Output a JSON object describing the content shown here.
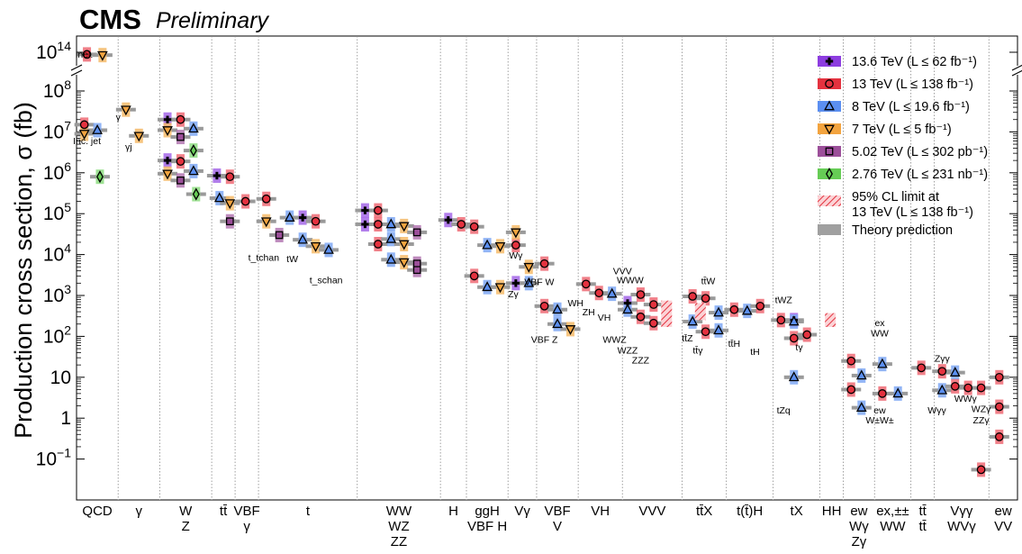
{
  "header": {
    "brand": "CMS",
    "status": "Preliminary"
  },
  "chart_data": {
    "type": "scatter",
    "scale": "log",
    "ylabel": "Production cross section, σ (fb)",
    "y_ticks": [
      {
        "v": 0.1,
        "base": "10",
        "exp": "−1"
      },
      {
        "v": 1,
        "text": "1"
      },
      {
        "v": 10,
        "text": "10"
      },
      {
        "v": 100,
        "base": "10",
        "exp": "2"
      },
      {
        "v": 1000,
        "base": "10",
        "exp": "3"
      },
      {
        "v": 10000,
        "base": "10",
        "exp": "4"
      },
      {
        "v": 100000,
        "base": "10",
        "exp": "5"
      },
      {
        "v": 1000000,
        "base": "10",
        "exp": "6"
      },
      {
        "v": 10000000,
        "base": "10",
        "exp": "7"
      },
      {
        "v": 100000000,
        "base": "10",
        "exp": "8"
      },
      {
        "v": 100000000000000,
        "base": "10",
        "exp": "14"
      }
    ],
    "ylim": [
      0.01,
      100000000000000
    ],
    "axis_break": "between 10^8 and 10^14",
    "grid": "dotted vertical separators between process groups",
    "groups": [
      {
        "lines": [
          "QCD"
        ],
        "x": [
          0,
          1.6
        ]
      },
      {
        "lines": [
          "γ"
        ],
        "x": [
          1.6,
          3.2
        ]
      },
      {
        "lines": [
          "W",
          "Z"
        ],
        "x": [
          3.2,
          5.2
        ]
      },
      {
        "lines": [
          "tt̄"
        ],
        "x": [
          5.2,
          6.1
        ]
      },
      {
        "lines": [
          "VBF",
          "γ"
        ],
        "x": [
          6.1,
          7.0
        ]
      },
      {
        "lines": [
          "t"
        ],
        "x": [
          7.0,
          10.8
        ]
      },
      {
        "lines": [
          "WW",
          "WZ",
          "ZZ"
        ],
        "x": [
          10.8,
          14.0
        ]
      },
      {
        "lines": [
          "H"
        ],
        "x": [
          14.0,
          15.0
        ]
      },
      {
        "lines": [
          "ggH",
          "VBF H"
        ],
        "x": [
          15.0,
          16.6
        ]
      },
      {
        "lines": [
          "Vγ"
        ],
        "x": [
          16.6,
          17.7
        ]
      },
      {
        "lines": [
          "VBF",
          "V"
        ],
        "x": [
          17.7,
          19.3
        ]
      },
      {
        "lines": [
          "VH"
        ],
        "x": [
          19.3,
          21.0
        ]
      },
      {
        "lines": [
          "VVV"
        ],
        "x": [
          21.0,
          23.3
        ]
      },
      {
        "lines": [
          "tt̄X"
        ],
        "x": [
          23.3,
          25.0
        ]
      },
      {
        "lines": [
          "t(t̄)H"
        ],
        "x": [
          25.0,
          26.8
        ]
      },
      {
        "lines": [
          "tX"
        ],
        "x": [
          26.8,
          28.6
        ]
      },
      {
        "lines": [
          "HH"
        ],
        "x": [
          28.6,
          29.5
        ]
      },
      {
        "lines": [
          "ew",
          "Wγ",
          "Zγ"
        ],
        "x": [
          29.5,
          30.7
        ]
      },
      {
        "lines": [
          "ex,±±",
          "WW"
        ],
        "x": [
          30.7,
          32.1
        ]
      },
      {
        "lines": [
          "tt̄",
          "tt̄"
        ],
        "x": [
          32.1,
          33.0
        ]
      },
      {
        "lines": [
          "Vγγ",
          "WVγ"
        ],
        "x": [
          33.0,
          35.1
        ]
      },
      {
        "lines": [
          "ew",
          "VV"
        ],
        "x": [
          35.1,
          36.2
        ]
      }
    ],
    "xlim": [
      0,
      36.2
    ],
    "legend_position": "top-right",
    "legend": [
      {
        "label": "13.6 TeV (L ≤ 62 fb⁻¹)",
        "marker": "cross",
        "color": "#8d3de0"
      },
      {
        "label": "13 TeV (L ≤ 138 fb⁻¹)",
        "marker": "circle",
        "color": "#e4323f"
      },
      {
        "label": "8 TeV (L ≤ 19.6 fb⁻¹)",
        "marker": "triangle",
        "color": "#5b8ff1"
      },
      {
        "label": "7 TeV (L ≤ 5 fb⁻¹)",
        "marker": "tridown",
        "color": "#f3a43f"
      },
      {
        "label": "5.02 TeV (L ≤ 302 pb⁻¹)",
        "marker": "square",
        "color": "#9c4f9a"
      },
      {
        "label": "2.76 TeV (L ≤ 231 nb⁻¹)",
        "marker": "diamond",
        "color": "#66cc55"
      },
      {
        "label": "95% CL limit at",
        "label2": "13 TeV (L ≤ 138 fb⁻¹)",
        "marker": "hatch",
        "color": "#e4323f"
      },
      {
        "label": "Theory prediction",
        "marker": "theory",
        "color": "#a0a0a0"
      }
    ],
    "points": [
      {
        "x": 0.4,
        "y": 50000000000000.0,
        "m": "circle",
        "c": "#e4323f"
      },
      {
        "x": 1.0,
        "y": 40000000000000.0,
        "m": "tridown",
        "c": "#f3a43f"
      },
      {
        "x": 0.3,
        "y": 15000000.0,
        "m": "circle",
        "c": "#e4323f"
      },
      {
        "x": 0.3,
        "y": 9000000.0,
        "m": "tridown",
        "c": "#f3a43f"
      },
      {
        "x": 0.8,
        "y": 11000000.0,
        "m": "triangle",
        "c": "#5b8ff1"
      },
      {
        "x": 0.9,
        "y": 800000.0,
        "m": "diamond",
        "c": "#66cc55"
      },
      {
        "x": 1.9,
        "y": 35000000.0,
        "m": "tridown",
        "c": "#f3a43f"
      },
      {
        "x": 2.4,
        "y": 8000000.0,
        "m": "tridown",
        "c": "#f3a43f"
      },
      {
        "x": 3.5,
        "y": 20000000.0,
        "m": "cross",
        "c": "#8d3de0"
      },
      {
        "x": 4.0,
        "y": 20000000.0,
        "m": "circle",
        "c": "#e4323f"
      },
      {
        "x": 3.5,
        "y": 11000000.0,
        "m": "tridown",
        "c": "#f3a43f"
      },
      {
        "x": 4.0,
        "y": 7500000.0,
        "m": "square",
        "c": "#9c4f9a"
      },
      {
        "x": 4.5,
        "y": 12000000.0,
        "m": "triangle",
        "c": "#5b8ff1"
      },
      {
        "x": 4.5,
        "y": 3500000.0,
        "m": "diamond",
        "c": "#66cc55"
      },
      {
        "x": 3.5,
        "y": 2000000.0,
        "m": "cross",
        "c": "#8d3de0"
      },
      {
        "x": 4.0,
        "y": 1900000.0,
        "m": "circle",
        "c": "#e4323f"
      },
      {
        "x": 4.5,
        "y": 1100000.0,
        "m": "triangle",
        "c": "#5b8ff1"
      },
      {
        "x": 3.5,
        "y": 950000.0,
        "m": "tridown",
        "c": "#f3a43f"
      },
      {
        "x": 4.0,
        "y": 650000.0,
        "m": "square",
        "c": "#9c4f9a"
      },
      {
        "x": 4.6,
        "y": 300000.0,
        "m": "diamond",
        "c": "#66cc55"
      },
      {
        "x": 5.4,
        "y": 850000.0,
        "m": "cross",
        "c": "#8d3de0"
      },
      {
        "x": 5.9,
        "y": 800000.0,
        "m": "circle",
        "c": "#e4323f"
      },
      {
        "x": 5.5,
        "y": 240000.0,
        "m": "triangle",
        "c": "#5b8ff1"
      },
      {
        "x": 5.9,
        "y": 180000.0,
        "m": "tridown",
        "c": "#f3a43f"
      },
      {
        "x": 5.9,
        "y": 65000.0,
        "m": "square",
        "c": "#9c4f9a"
      },
      {
        "x": 6.5,
        "y": 200000.0,
        "m": "circle",
        "c": "#e4323f"
      },
      {
        "x": 7.3,
        "y": 230000.0,
        "m": "circle",
        "c": "#e4323f"
      },
      {
        "x": 7.3,
        "y": 65000.0,
        "m": "tridown",
        "c": "#f3a43f"
      },
      {
        "x": 7.8,
        "y": 30000.0,
        "m": "square",
        "c": "#9c4f9a"
      },
      {
        "x": 8.2,
        "y": 80000.0,
        "m": "triangle",
        "c": "#5b8ff1"
      },
      {
        "x": 8.7,
        "y": 80000.0,
        "m": "cross",
        "c": "#8d3de0"
      },
      {
        "x": 9.2,
        "y": 65000.0,
        "m": "circle",
        "c": "#e4323f"
      },
      {
        "x": 8.7,
        "y": 23000.0,
        "m": "triangle",
        "c": "#5b8ff1"
      },
      {
        "x": 9.2,
        "y": 16000.0,
        "m": "tridown",
        "c": "#f3a43f"
      },
      {
        "x": 9.7,
        "y": 13000.0,
        "m": "triangle",
        "c": "#5b8ff1"
      },
      {
        "x": 11.1,
        "y": 120000.0,
        "m": "cross",
        "c": "#8d3de0"
      },
      {
        "x": 11.6,
        "y": 120000.0,
        "m": "circle",
        "c": "#e4323f"
      },
      {
        "x": 12.1,
        "y": 55000.0,
        "m": "triangle",
        "c": "#5b8ff1"
      },
      {
        "x": 12.6,
        "y": 50000.0,
        "m": "tridown",
        "c": "#f3a43f"
      },
      {
        "x": 11.1,
        "y": 55000.0,
        "m": "cross",
        "c": "#8d3de0"
      },
      {
        "x": 11.6,
        "y": 55000.0,
        "m": "circle",
        "c": "#e4323f"
      },
      {
        "x": 13.1,
        "y": 35000.0,
        "m": "square",
        "c": "#9c4f9a"
      },
      {
        "x": 11.6,
        "y": 18000.0,
        "m": "circle",
        "c": "#e4323f"
      },
      {
        "x": 12.1,
        "y": 24000.0,
        "m": "triangle",
        "c": "#5b8ff1"
      },
      {
        "x": 12.6,
        "y": 18000.0,
        "m": "tridown",
        "c": "#f3a43f"
      },
      {
        "x": 12.1,
        "y": 7500.0,
        "m": "triangle",
        "c": "#5b8ff1"
      },
      {
        "x": 12.6,
        "y": 6500.0,
        "m": "tridown",
        "c": "#f3a43f"
      },
      {
        "x": 13.1,
        "y": 6000.0,
        "m": "square",
        "c": "#9c4f9a"
      },
      {
        "x": 13.1,
        "y": 4200.0,
        "m": "square",
        "c": "#9c4f9a"
      },
      {
        "x": 14.3,
        "y": 70000.0,
        "m": "cross",
        "c": "#8d3de0"
      },
      {
        "x": 14.8,
        "y": 55000.0,
        "m": "circle",
        "c": "#e4323f"
      },
      {
        "x": 15.3,
        "y": 48000.0,
        "m": "circle",
        "c": "#e4323f"
      },
      {
        "x": 15.8,
        "y": 17000.0,
        "m": "triangle",
        "c": "#5b8ff1"
      },
      {
        "x": 16.3,
        "y": 16000.0,
        "m": "tridown",
        "c": "#f3a43f"
      },
      {
        "x": 15.3,
        "y": 3000.0,
        "m": "circle",
        "c": "#e4323f"
      },
      {
        "x": 15.8,
        "y": 1600.0,
        "m": "triangle",
        "c": "#5b8ff1"
      },
      {
        "x": 16.3,
        "y": 1600.0,
        "m": "tridown",
        "c": "#f3a43f"
      },
      {
        "x": 16.9,
        "y": 17000.0,
        "m": "circle",
        "c": "#e4323f"
      },
      {
        "x": 16.9,
        "y": 35000.0,
        "m": "tridown",
        "c": "#f3a43f"
      },
      {
        "x": 17.4,
        "y": 5000.0,
        "m": "tridown",
        "c": "#f3a43f"
      },
      {
        "x": 16.9,
        "y": 2000.0,
        "m": "cross",
        "c": "#8d3de0"
      },
      {
        "x": 17.4,
        "y": 2000.0,
        "m": "triangle",
        "c": "#5b8ff1"
      },
      {
        "x": 18.0,
        "y": 6000.0,
        "m": "circle",
        "c": "#e4323f"
      },
      {
        "x": 18.0,
        "y": 550,
        "m": "circle",
        "c": "#e4323f"
      },
      {
        "x": 18.5,
        "y": 450,
        "m": "triangle",
        "c": "#5b8ff1"
      },
      {
        "x": 18.5,
        "y": 200,
        "m": "triangle",
        "c": "#5b8ff1"
      },
      {
        "x": 19.0,
        "y": 150,
        "m": "tridown",
        "c": "#f3a43f"
      },
      {
        "x": 19.6,
        "y": 1900.0,
        "m": "circle",
        "c": "#e4323f"
      },
      {
        "x": 20.1,
        "y": 1150.0,
        "m": "circle",
        "c": "#e4323f"
      },
      {
        "x": 20.6,
        "y": 1100.0,
        "m": "triangle",
        "c": "#5b8ff1"
      },
      {
        "x": 21.2,
        "y": 650,
        "m": "cross",
        "c": "#8d3de0"
      },
      {
        "x": 21.2,
        "y": 450,
        "m": "triangle",
        "c": "#5b8ff1"
      },
      {
        "x": 21.7,
        "y": 1050.0,
        "m": "circle",
        "c": "#e4323f"
      },
      {
        "x": 21.7,
        "y": 300,
        "m": "circle",
        "c": "#e4323f"
      },
      {
        "x": 22.2,
        "y": 600,
        "m": "circle",
        "c": "#e4323f"
      },
      {
        "x": 22.2,
        "y": 210,
        "m": "circle",
        "c": "#e4323f"
      },
      {
        "x": 23.7,
        "y": 950,
        "m": "circle",
        "c": "#e4323f"
      },
      {
        "x": 24.2,
        "y": 850,
        "m": "circle",
        "c": "#e4323f"
      },
      {
        "x": 23.7,
        "y": 230,
        "m": "triangle",
        "c": "#5b8ff1"
      },
      {
        "x": 24.2,
        "y": 130,
        "m": "circle",
        "c": "#e4323f"
      },
      {
        "x": 24.7,
        "y": 380,
        "m": "triangle",
        "c": "#5b8ff1"
      },
      {
        "x": 24.7,
        "y": 140,
        "m": "triangle",
        "c": "#5b8ff1"
      },
      {
        "x": 25.3,
        "y": 450,
        "m": "circle",
        "c": "#e4323f"
      },
      {
        "x": 25.8,
        "y": 420,
        "m": "triangle",
        "c": "#5b8ff1"
      },
      {
        "x": 26.3,
        "y": 550,
        "m": "circle",
        "c": "#e4323f"
      },
      {
        "x": 27.1,
        "y": 250,
        "m": "circle",
        "c": "#e4323f"
      },
      {
        "x": 27.6,
        "y": 250,
        "m": "cross",
        "c": "#8d3de0"
      },
      {
        "x": 27.6,
        "y": 230,
        "m": "triangle",
        "c": "#5b8ff1"
      },
      {
        "x": 27.6,
        "y": 90,
        "m": "circle",
        "c": "#e4323f"
      },
      {
        "x": 28.1,
        "y": 110,
        "m": "circle",
        "c": "#e4323f"
      },
      {
        "x": 27.6,
        "y": 10,
        "m": "triangle",
        "c": "#5b8ff1"
      },
      {
        "x": 29.8,
        "y": 25,
        "m": "circle",
        "c": "#e4323f"
      },
      {
        "x": 29.8,
        "y": 5,
        "m": "circle",
        "c": "#e4323f"
      },
      {
        "x": 30.2,
        "y": 11,
        "m": "triangle",
        "c": "#5b8ff1"
      },
      {
        "x": 30.2,
        "y": 1.8,
        "m": "triangle",
        "c": "#5b8ff1"
      },
      {
        "x": 31.0,
        "y": 21,
        "m": "triangle",
        "c": "#5b8ff1"
      },
      {
        "x": 31.0,
        "y": 4,
        "m": "circle",
        "c": "#e4323f"
      },
      {
        "x": 31.6,
        "y": 4,
        "m": "triangle",
        "c": "#5b8ff1"
      },
      {
        "x": 32.5,
        "y": 17,
        "m": "circle",
        "c": "#e4323f"
      },
      {
        "x": 33.3,
        "y": 14,
        "m": "circle",
        "c": "#e4323f"
      },
      {
        "x": 33.3,
        "y": 4.8,
        "m": "triangle",
        "c": "#5b8ff1"
      },
      {
        "x": 33.8,
        "y": 13,
        "m": "triangle",
        "c": "#5b8ff1"
      },
      {
        "x": 33.8,
        "y": 6,
        "m": "circle",
        "c": "#e4323f"
      },
      {
        "x": 34.3,
        "y": 5.5,
        "m": "circle",
        "c": "#e4323f"
      },
      {
        "x": 34.8,
        "y": 5.5,
        "m": "circle",
        "c": "#e4323f"
      },
      {
        "x": 35.5,
        "y": 10,
        "m": "circle",
        "c": "#e4323f"
      },
      {
        "x": 35.5,
        "y": 1.9,
        "m": "circle",
        "c": "#e4323f"
      },
      {
        "x": 35.5,
        "y": 0.35,
        "m": "circle",
        "c": "#e4323f"
      },
      {
        "x": 34.8,
        "y": 0.055,
        "m": "circle",
        "c": "#e4323f"
      }
    ],
    "limits": [
      {
        "x": 22.7,
        "y0": 170,
        "y1": 750
      },
      {
        "x": 24.0,
        "y0": 250,
        "y1": 650
      },
      {
        "x": 29.0,
        "y0": 170,
        "y1": 370
      }
    ],
    "annotations": [
      {
        "x": 0.3,
        "y": 18000000000000.0,
        "text": "inel."
      },
      {
        "x": 0.4,
        "y": 5000000.0,
        "text": "Inc. jet"
      },
      {
        "x": 1.6,
        "y": 19000000.0,
        "text": "γ"
      },
      {
        "x": 2.0,
        "y": 3600000.0,
        "text": "γj"
      },
      {
        "x": 7.2,
        "y": 7000.0,
        "text": "t_tchan"
      },
      {
        "x": 8.3,
        "y": 6500.0,
        "text": "tW"
      },
      {
        "x": 9.6,
        "y": 2000.0,
        "text": "t_schan"
      },
      {
        "x": 16.9,
        "y": 8000.0,
        "text": "Wγ"
      },
      {
        "x": 16.8,
        "y": 900,
        "text": "Zγ"
      },
      {
        "x": 17.8,
        "y": 1800.0,
        "text": "VBF W"
      },
      {
        "x": 18.0,
        "y": 70,
        "text": "VBF Z"
      },
      {
        "x": 19.2,
        "y": 550,
        "text": "WH"
      },
      {
        "x": 19.7,
        "y": 330,
        "text": "ZH"
      },
      {
        "x": 20.3,
        "y": 240,
        "text": "VH"
      },
      {
        "x": 21.0,
        "y": 3300.0,
        "text": "VVV"
      },
      {
        "x": 21.3,
        "y": 2000.0,
        "text": "WWW"
      },
      {
        "x": 20.7,
        "y": 70,
        "text": "WWZ"
      },
      {
        "x": 21.2,
        "y": 38,
        "text": "WZZ"
      },
      {
        "x": 21.7,
        "y": 22,
        "text": "ZZZ"
      },
      {
        "x": 23.5,
        "y": 75,
        "text": "tt̄Z"
      },
      {
        "x": 24.3,
        "y": 1900.0,
        "text": "tt̄W"
      },
      {
        "x": 23.9,
        "y": 38,
        "text": "tt̄γ"
      },
      {
        "x": 25.3,
        "y": 55,
        "text": "tt̄H"
      },
      {
        "x": 26.1,
        "y": 35,
        "text": "tH"
      },
      {
        "x": 27.2,
        "y": 650,
        "text": "tWZ"
      },
      {
        "x": 27.8,
        "y": 45,
        "text": "tγ"
      },
      {
        "x": 27.2,
        "y": 1.3,
        "text": "tZq"
      },
      {
        "x": 30.9,
        "y": 180,
        "text": "ex"
      },
      {
        "x": 30.9,
        "y": 100,
        "text": "WW"
      },
      {
        "x": 30.9,
        "y": 1.3,
        "text": "ew"
      },
      {
        "x": 30.9,
        "y": 0.75,
        "text": "W±W±"
      },
      {
        "x": 33.3,
        "y": 24,
        "text": "Zγγ"
      },
      {
        "x": 33.1,
        "y": 1.3,
        "text": "Wγγ"
      },
      {
        "x": 34.2,
        "y": 2.5,
        "text": "WWγ"
      },
      {
        "x": 34.8,
        "y": 1.4,
        "text": "WZγ"
      },
      {
        "x": 34.8,
        "y": 0.75,
        "text": "ZZγ"
      }
    ]
  }
}
